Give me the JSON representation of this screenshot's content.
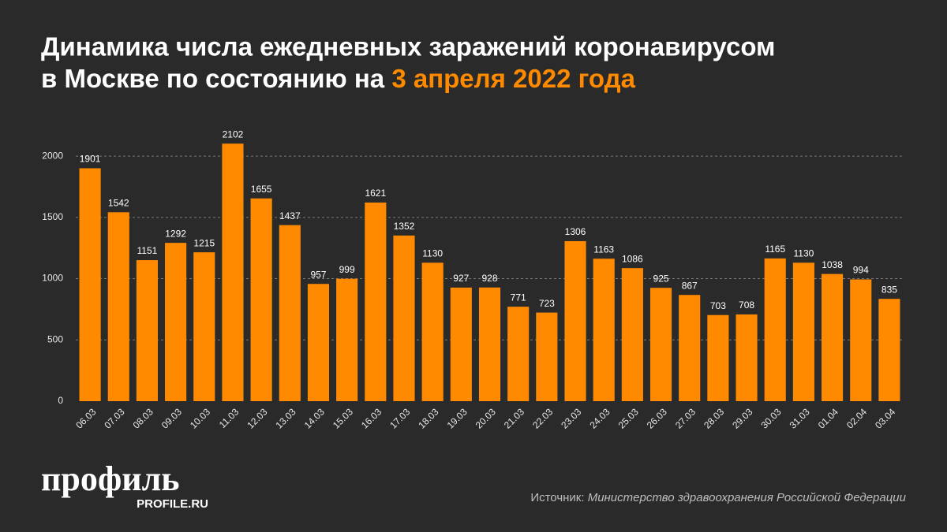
{
  "chart_data": {
    "type": "bar",
    "title": "Динамика числа ежедневных заражений коронавирусом",
    "title_line2": "в Москве по состоянию на",
    "title_highlight": "3 апреля 2022 года",
    "categories": [
      "06.03",
      "07.03",
      "08.03",
      "09.03",
      "10.03",
      "11.03",
      "12.03",
      "13.03",
      "14.03",
      "15.03",
      "16.03",
      "17.03",
      "18.03",
      "19.03",
      "20.03",
      "21.03",
      "22.03",
      "23.03",
      "24.03",
      "25.03",
      "26.03",
      "27.03",
      "28.03",
      "29.03",
      "30.03",
      "31.03",
      "01.04",
      "02.04",
      "03.04"
    ],
    "values": [
      1901,
      1542,
      1151,
      1292,
      1215,
      2102,
      1655,
      1437,
      957,
      999,
      1621,
      1352,
      1130,
      927,
      928,
      771,
      723,
      1306,
      1163,
      1086,
      925,
      867,
      703,
      708,
      1165,
      1130,
      1038,
      994,
      835
    ],
    "color": "#ff8a00",
    "ylim": [
      0,
      2200
    ],
    "yticks": [
      0,
      500,
      1000,
      1500,
      2000
    ],
    "grid": true,
    "logo": "профиль",
    "logo_sub": "PROFILE.RU",
    "source_label": "Источник:",
    "source": "Министерство здравоохранения Российской Федерации"
  }
}
